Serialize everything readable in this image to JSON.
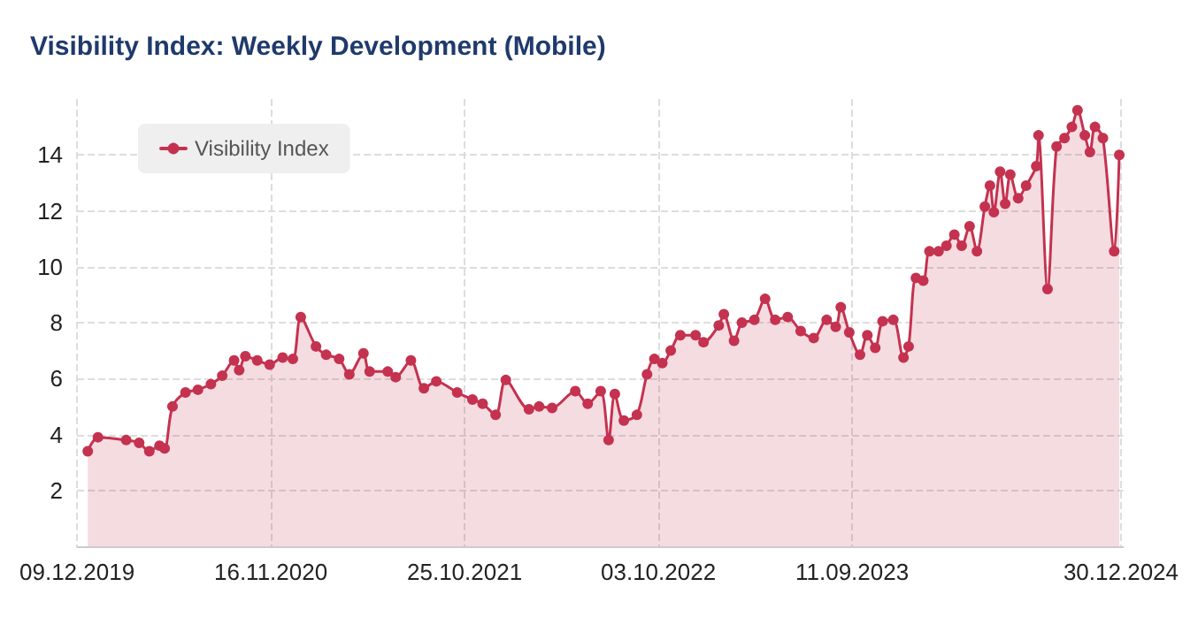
{
  "chart_data": {
    "type": "area",
    "title": "Visibility Index: Weekly Development (Mobile)",
    "x": [
      "2019-12-28",
      "2020-01-15",
      "2020-03-05",
      "2020-03-28",
      "2020-04-15",
      "2020-05-03",
      "2020-05-12",
      "2020-05-26",
      "2020-06-18",
      "2020-07-10",
      "2020-08-02",
      "2020-08-22",
      "2020-09-12",
      "2020-09-21",
      "2020-10-02",
      "2020-10-23",
      "2020-11-14",
      "2020-12-07",
      "2020-12-25",
      "2021-01-08",
      "2021-02-04",
      "2021-02-22",
      "2021-03-17",
      "2021-04-04",
      "2021-04-29",
      "2021-05-10",
      "2021-06-11",
      "2021-06-25",
      "2021-07-22",
      "2021-08-14",
      "2021-09-05",
      "2021-10-12",
      "2021-11-08",
      "2021-11-26",
      "2021-12-19",
      "2022-01-06",
      "2022-02-16",
      "2022-03-06",
      "2022-03-29",
      "2022-05-09",
      "2022-05-31",
      "2022-06-23",
      "2022-07-07",
      "2022-07-18",
      "2022-08-03",
      "2022-08-26",
      "2022-09-13",
      "2022-09-26",
      "2022-10-10",
      "2022-10-25",
      "2022-11-11",
      "2022-12-08",
      "2022-12-22",
      "2023-01-18",
      "2023-01-27",
      "2023-02-14",
      "2023-02-28",
      "2023-03-22",
      "2023-04-10",
      "2023-04-28",
      "2023-05-20",
      "2023-06-12",
      "2023-07-05",
      "2023-07-28",
      "2023-08-13",
      "2023-08-22",
      "2023-09-06",
      "2023-09-25",
      "2023-10-08",
      "2023-10-22",
      "2023-11-04",
      "2023-11-23",
      "2023-12-11",
      "2023-12-20",
      "2024-01-02",
      "2024-01-15",
      "2024-01-26",
      "2024-02-11",
      "2024-02-25",
      "2024-03-10",
      "2024-03-23",
      "2024-04-06",
      "2024-04-19",
      "2024-05-03",
      "2024-05-12",
      "2024-05-19",
      "2024-05-30",
      "2024-06-08",
      "2024-06-17",
      "2024-07-01",
      "2024-07-15",
      "2024-08-02",
      "2024-08-06",
      "2024-08-22",
      "2024-09-07",
      "2024-09-21",
      "2024-10-04",
      "2024-10-14",
      "2024-10-27",
      "2024-11-05",
      "2024-11-14",
      "2024-11-28",
      "2024-12-18",
      "2024-12-27"
    ],
    "series": [
      {
        "name": "Visibility Index",
        "color": "#c4324f",
        "values": [
          3.4,
          3.9,
          3.8,
          3.7,
          3.4,
          3.6,
          3.5,
          5.0,
          5.5,
          5.6,
          5.8,
          6.1,
          6.65,
          6.3,
          6.8,
          6.65,
          6.5,
          6.75,
          6.7,
          8.2,
          7.15,
          6.85,
          6.7,
          6.15,
          6.9,
          6.25,
          6.25,
          6.05,
          6.65,
          5.65,
          5.9,
          5.5,
          5.25,
          5.1,
          4.7,
          5.95,
          4.9,
          5.0,
          4.95,
          5.55,
          5.1,
          5.55,
          3.8,
          5.45,
          4.5,
          4.7,
          6.15,
          6.7,
          6.55,
          7.0,
          7.55,
          7.55,
          7.3,
          7.9,
          8.3,
          7.35,
          8.0,
          8.1,
          8.85,
          8.1,
          8.2,
          7.7,
          7.45,
          8.1,
          7.85,
          8.55,
          7.65,
          6.85,
          7.55,
          7.1,
          8.05,
          8.1,
          6.75,
          7.15,
          9.6,
          9.5,
          10.55,
          10.55,
          10.75,
          11.15,
          10.75,
          11.45,
          10.55,
          12.15,
          12.9,
          11.95,
          13.4,
          12.25,
          13.3,
          12.45,
          12.9,
          13.6,
          14.7,
          9.2,
          14.3,
          14.6,
          15.0,
          15.6,
          14.7,
          14.1,
          15.0,
          14.6,
          10.55,
          14.0
        ]
      }
    ],
    "xlim": [
      "2019-12-09",
      "2025-01-03"
    ],
    "xticks": [
      {
        "value": "2019-12-09",
        "label": "09.12.2019"
      },
      {
        "value": "2020-11-16",
        "label": "16.11.2020"
      },
      {
        "value": "2021-10-25",
        "label": "25.10.2021"
      },
      {
        "value": "2022-10-03",
        "label": "03.10.2022"
      },
      {
        "value": "2023-09-11",
        "label": "11.09.2023"
      },
      {
        "value": "2024-12-30",
        "label": "30.12.2024"
      }
    ],
    "ylim": [
      0,
      16
    ],
    "yticks": [
      2,
      4,
      6,
      8,
      10,
      12,
      14
    ],
    "grid": true,
    "legend": "top left",
    "marker": "circle",
    "line_style": "solid"
  }
}
